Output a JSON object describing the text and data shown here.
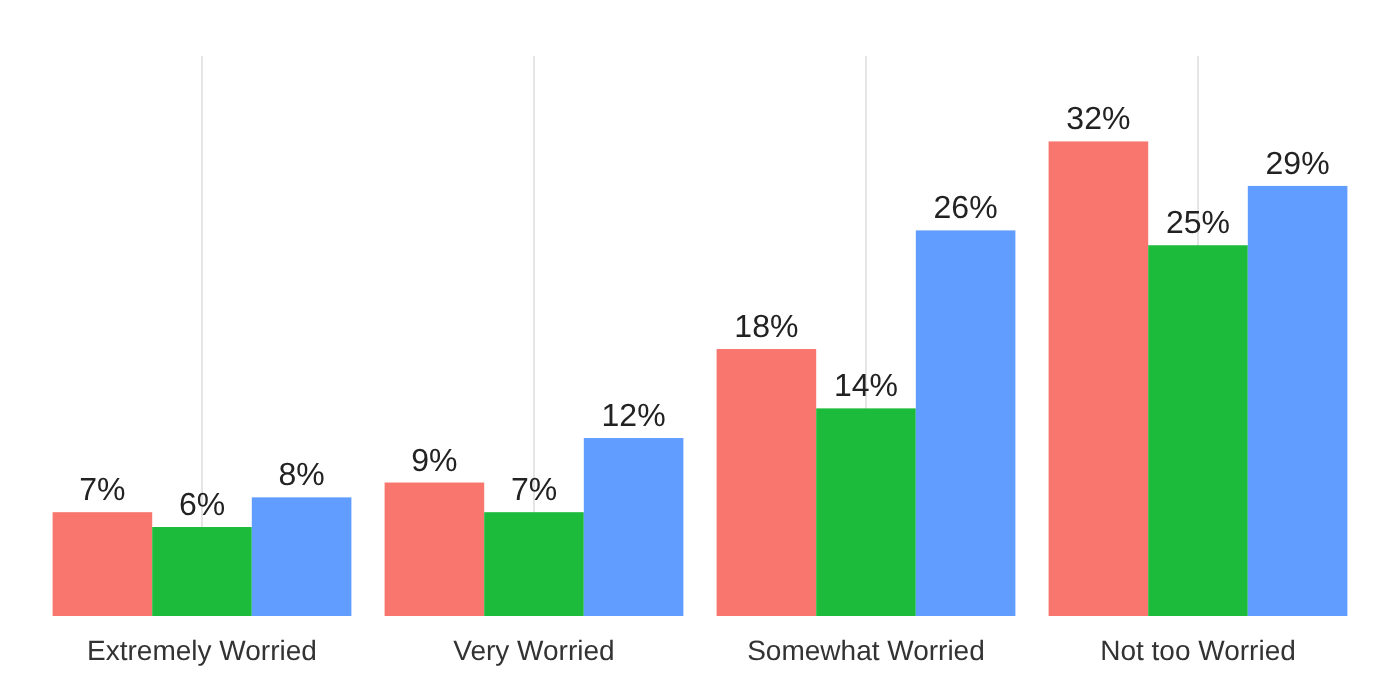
{
  "chart_data": {
    "type": "bar",
    "categories": [
      "Extremely Worried",
      "Very Worried",
      "Somewhat Worried",
      "Not too Worried"
    ],
    "series": [
      {
        "color": "#f8766d",
        "values": [
          7,
          9,
          18,
          32
        ],
        "value_labels": [
          "7%",
          "9%",
          "18%",
          "32%"
        ]
      },
      {
        "color": "#1dbb3b",
        "values": [
          6,
          7,
          14,
          25
        ],
        "value_labels": [
          "6%",
          "7%",
          "14%",
          "25%"
        ]
      },
      {
        "color": "#619cff",
        "values": [
          8,
          12,
          26,
          29
        ],
        "value_labels": [
          "8%",
          "12%",
          "26%",
          "29%"
        ]
      }
    ],
    "tick_labels": "x",
    "grid": "x"
  }
}
